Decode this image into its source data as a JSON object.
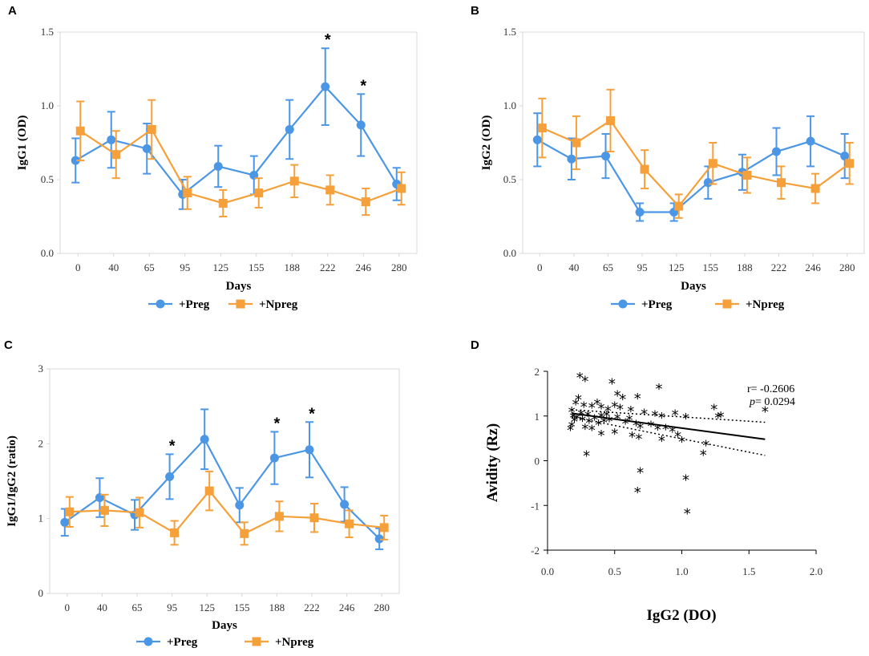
{
  "colors": {
    "preg": "#4c96e6",
    "npreg": "#f5a03a",
    "axis": "#d8d8d8",
    "text": "#000000"
  },
  "chart_data": [
    {
      "id": "A",
      "type": "line",
      "panel_label": "A",
      "xlabel": "Days",
      "ylabel": "IgG1 (OD)",
      "categories": [
        "0",
        "40",
        "65",
        "95",
        "125",
        "155",
        "188",
        "222",
        "246",
        "280"
      ],
      "ylim": [
        0,
        1.5
      ],
      "yticks": [
        0.0,
        0.5,
        1.0,
        1.5
      ],
      "ytick_labels": [
        "0.0",
        "0.5",
        "1.0",
        "1.5"
      ],
      "series": [
        {
          "name": "+Preg",
          "marker": "circle",
          "values": [
            0.63,
            0.77,
            0.71,
            0.4,
            0.59,
            0.53,
            0.84,
            1.13,
            0.87,
            0.47
          ],
          "err": [
            0.15,
            0.19,
            0.17,
            0.1,
            0.14,
            0.13,
            0.2,
            0.26,
            0.21,
            0.11
          ]
        },
        {
          "name": "+Npreg",
          "marker": "square",
          "values": [
            0.83,
            0.67,
            0.84,
            0.41,
            0.34,
            0.41,
            0.49,
            0.43,
            0.35,
            0.44
          ],
          "err": [
            0.2,
            0.16,
            0.2,
            0.11,
            0.09,
            0.1,
            0.11,
            0.1,
            0.09,
            0.11
          ]
        }
      ],
      "significance": [
        "222",
        "246"
      ],
      "significance_mark": "*",
      "legend": [
        "+Preg",
        "+Npreg"
      ]
    },
    {
      "id": "B",
      "type": "line",
      "panel_label": "B",
      "xlabel": "Days",
      "ylabel": "IgG2 (OD)",
      "categories": [
        "0",
        "40",
        "65",
        "95",
        "125",
        "155",
        "188",
        "222",
        "246",
        "280"
      ],
      "ylim": [
        0,
        1.5
      ],
      "yticks": [
        0.0,
        0.5,
        1.0,
        1.5
      ],
      "ytick_labels": [
        "0.0",
        "0.5",
        "1.0",
        "1.5"
      ],
      "series": [
        {
          "name": "+Preg",
          "marker": "circle",
          "values": [
            0.77,
            0.64,
            0.66,
            0.28,
            0.28,
            0.48,
            0.55,
            0.69,
            0.76,
            0.66
          ],
          "err": [
            0.18,
            0.14,
            0.15,
            0.06,
            0.06,
            0.11,
            0.12,
            0.16,
            0.17,
            0.15
          ]
        },
        {
          "name": "+Npreg",
          "marker": "square",
          "values": [
            0.85,
            0.75,
            0.9,
            0.57,
            0.32,
            0.61,
            0.53,
            0.48,
            0.44,
            0.61
          ],
          "err": [
            0.2,
            0.18,
            0.21,
            0.13,
            0.08,
            0.14,
            0.12,
            0.11,
            0.1,
            0.14
          ]
        }
      ],
      "significance": [],
      "significance_mark": "*",
      "legend": [
        "+Preg",
        "+Npreg"
      ]
    },
    {
      "id": "C",
      "type": "line",
      "panel_label": "C",
      "xlabel": "Days",
      "ylabel": "IgG1/IgG2 (ratio)",
      "categories": [
        "0",
        "40",
        "65",
        "95",
        "125",
        "155",
        "188",
        "222",
        "246",
        "280"
      ],
      "ylim": [
        0,
        3
      ],
      "yticks": [
        0,
        1,
        2,
        3
      ],
      "ytick_labels": [
        "0",
        "1",
        "2",
        "3"
      ],
      "series": [
        {
          "name": "+Preg",
          "marker": "circle",
          "values": [
            0.95,
            1.28,
            1.05,
            1.56,
            2.06,
            1.18,
            1.81,
            1.92,
            1.19,
            0.73
          ],
          "err": [
            0.18,
            0.26,
            0.2,
            0.3,
            0.4,
            0.23,
            0.35,
            0.37,
            0.23,
            0.14
          ]
        },
        {
          "name": "+Npreg",
          "marker": "square",
          "values": [
            1.09,
            1.11,
            1.08,
            0.81,
            1.37,
            0.8,
            1.03,
            1.01,
            0.93,
            0.88
          ],
          "err": [
            0.2,
            0.21,
            0.2,
            0.16,
            0.26,
            0.15,
            0.2,
            0.19,
            0.18,
            0.16
          ]
        }
      ],
      "significance": [
        "95",
        "188",
        "222"
      ],
      "significance_mark": "*",
      "legend": [
        "+Preg",
        "+Npreg"
      ]
    },
    {
      "id": "D",
      "type": "scatter",
      "panel_label": "D",
      "xlabel": "IgG2 (DO)",
      "ylabel": "Avidity (Rz)",
      "xlim": [
        0,
        2
      ],
      "ylim": [
        -2,
        2
      ],
      "xticks": [
        0.0,
        0.5,
        1.0,
        1.5,
        2.0
      ],
      "xtick_labels": [
        "0.0",
        "0.5",
        "1.0",
        "1.5",
        "2.0"
      ],
      "yticks": [
        -2,
        -1,
        0,
        1,
        2
      ],
      "ytick_labels": [
        "-2",
        "-1",
        "0",
        "1",
        "2"
      ],
      "stat_r": "r= -0.2606",
      "stat_p_symbol": "p",
      "stat_p_value": "= 0.0294",
      "regression": {
        "x0": 0.18,
        "y0": 1.06,
        "x1": 1.62,
        "y1": 0.48
      },
      "ci_upper": {
        "x0": 0.18,
        "y0": 1.14,
        "x1": 1.62,
        "y1": 0.86
      },
      "ci_lower": {
        "x0": 0.18,
        "y0": 0.98,
        "x1": 1.62,
        "y1": 0.12
      },
      "points": [
        [
          0.24,
          1.87
        ],
        [
          0.28,
          1.79
        ],
        [
          0.48,
          1.74
        ],
        [
          0.52,
          1.47
        ],
        [
          0.56,
          1.39
        ],
        [
          0.83,
          1.62
        ],
        [
          0.67,
          1.41
        ],
        [
          0.21,
          1.27
        ],
        [
          0.23,
          1.38
        ],
        [
          0.27,
          1.22
        ],
        [
          0.33,
          1.2
        ],
        [
          0.37,
          1.28
        ],
        [
          0.4,
          1.18
        ],
        [
          0.45,
          1.13
        ],
        [
          0.5,
          1.22
        ],
        [
          0.54,
          1.17
        ],
        [
          0.62,
          1.12
        ],
        [
          0.72,
          1.06
        ],
        [
          0.8,
          1.02
        ],
        [
          0.85,
          0.98
        ],
        [
          0.95,
          1.04
        ],
        [
          1.03,
          0.96
        ],
        [
          1.24,
          1.17
        ],
        [
          1.27,
          0.98
        ],
        [
          1.29,
          1.0
        ],
        [
          1.62,
          1.11
        ],
        [
          0.18,
          1.1
        ],
        [
          0.19,
          0.98
        ],
        [
          0.2,
          0.89
        ],
        [
          0.22,
          0.95
        ],
        [
          0.25,
          1.04
        ],
        [
          0.26,
          0.91
        ],
        [
          0.3,
          1.01
        ],
        [
          0.31,
          0.86
        ],
        [
          0.35,
          0.93
        ],
        [
          0.38,
          0.82
        ],
        [
          0.4,
          0.99
        ],
        [
          0.42,
          0.87
        ],
        [
          0.44,
          1.01
        ],
        [
          0.46,
          0.9
        ],
        [
          0.52,
          0.95
        ],
        [
          0.58,
          0.84
        ],
        [
          0.61,
          0.92
        ],
        [
          0.66,
          0.81
        ],
        [
          0.69,
          0.74
        ],
        [
          0.77,
          0.79
        ],
        [
          0.82,
          0.71
        ],
        [
          0.88,
          0.72
        ],
        [
          0.93,
          0.66
        ],
        [
          0.17,
          0.7
        ],
        [
          0.18,
          0.78
        ],
        [
          0.28,
          0.73
        ],
        [
          0.33,
          0.7
        ],
        [
          0.4,
          0.58
        ],
        [
          0.5,
          0.62
        ],
        [
          0.63,
          0.55
        ],
        [
          0.68,
          0.5
        ],
        [
          0.85,
          0.46
        ],
        [
          0.97,
          0.56
        ],
        [
          1.0,
          0.44
        ],
        [
          1.18,
          0.36
        ],
        [
          1.16,
          0.14
        ],
        [
          0.29,
          0.13
        ],
        [
          0.69,
          -0.25
        ],
        [
          0.67,
          -0.69
        ],
        [
          1.03,
          -0.41
        ],
        [
          1.04,
          -1.17
        ]
      ]
    }
  ]
}
